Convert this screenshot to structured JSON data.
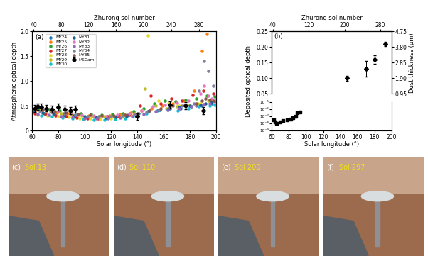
{
  "chart_data": [
    {
      "type": "scatter",
      "panel": "(a)",
      "xlabel": "Solar longitude (°)",
      "ylabel": "Atmospheric optical depth",
      "xlim": [
        60,
        200
      ],
      "xticks": [
        60,
        80,
        100,
        120,
        140,
        160,
        180,
        200
      ],
      "ylim": [
        0,
        2
      ],
      "yticks": [
        0,
        {
          "value": 0.5,
          "label": "0.5"
        },
        {
          "value": 1,
          "label": "1.0"
        },
        {
          "value": 1.5,
          "label": "1.5"
        },
        {
          "value": 2,
          "label": "2.0"
        }
      ],
      "legend": "upper left",
      "top_axis": {
        "label": "Zhurong sol number",
        "xlim": [
          38,
          305
        ],
        "xticks": [
          40,
          80,
          120,
          160,
          200,
          240,
          280
        ]
      },
      "series": [
        {
          "name": "MY24",
          "color": "#1f77b4",
          "marker": "o",
          "x": [
            61,
            69,
            77,
            85,
            93,
            101,
            109,
            117,
            125,
            133,
            141,
            149,
            157,
            165,
            173,
            181,
            189,
            197
          ],
          "values": [
            0.38,
            0.35,
            0.33,
            0.3,
            0.28,
            0.27,
            0.26,
            0.28,
            0.3,
            0.32,
            0.35,
            0.4,
            0.42,
            0.45,
            0.44,
            0.48,
            0.5,
            0.55
          ]
        },
        {
          "name": "MY25",
          "color": "#ff7f0e",
          "marker": "o",
          "x": [
            63,
            71,
            79,
            87,
            95,
            103,
            111,
            119,
            127,
            135,
            143,
            151,
            159,
            167,
            175,
            183,
            189,
            193
          ],
          "values": [
            0.42,
            0.4,
            0.36,
            0.34,
            0.31,
            0.3,
            0.29,
            0.3,
            0.33,
            0.36,
            0.4,
            0.45,
            0.5,
            0.55,
            0.6,
            0.8,
            1.6,
            1.95
          ]
        },
        {
          "name": "MY26",
          "color": "#2ca02c",
          "marker": "o",
          "x": [
            65,
            73,
            81,
            89,
            97,
            105,
            113,
            121,
            129,
            137,
            145,
            153,
            161,
            169,
            177,
            185,
            193,
            199
          ],
          "values": [
            0.45,
            0.43,
            0.4,
            0.37,
            0.35,
            0.33,
            0.32,
            0.33,
            0.35,
            0.38,
            0.45,
            0.55,
            0.6,
            0.58,
            0.62,
            0.65,
            0.7,
            0.68
          ]
        },
        {
          "name": "MY27",
          "color": "#d62728",
          "marker": "o",
          "x": [
            62,
            70,
            78,
            86,
            94,
            102,
            110,
            118,
            126,
            134,
            142,
            150,
            158,
            166,
            174,
            182,
            190,
            198
          ],
          "values": [
            0.35,
            0.33,
            0.3,
            0.28,
            0.26,
            0.25,
            0.24,
            0.26,
            0.28,
            0.32,
            0.5,
            0.7,
            0.55,
            0.65,
            0.6,
            0.72,
            0.8,
            0.75
          ]
        },
        {
          "name": "MY28",
          "color": "#e6d82a",
          "marker": "o",
          "x": [
            64,
            72,
            80,
            88,
            96,
            104,
            112,
            120,
            128,
            136,
            144,
            148,
            156,
            164,
            172,
            180,
            188,
            196
          ],
          "values": [
            0.32,
            0.3,
            0.28,
            0.27,
            0.25,
            0.24,
            0.23,
            0.25,
            0.27,
            0.3,
            0.4,
            1.92,
            0.6,
            0.55,
            0.5,
            0.52,
            0.55,
            0.58
          ]
        },
        {
          "name": "MY29",
          "color": "#bcbd22",
          "marker": "o",
          "x": [
            66,
            74,
            82,
            90,
            98,
            106,
            114,
            122,
            130,
            138,
            146,
            154,
            162,
            170,
            178,
            186,
            194,
            200
          ],
          "values": [
            0.4,
            0.38,
            0.35,
            0.33,
            0.3,
            0.29,
            0.28,
            0.29,
            0.31,
            0.34,
            0.85,
            0.5,
            0.45,
            0.48,
            0.52,
            0.55,
            0.6,
            0.62
          ]
        },
        {
          "name": "MY30",
          "color": "#17becf",
          "marker": "o",
          "x": [
            67,
            75,
            83,
            91,
            99,
            107,
            115,
            123,
            131,
            139,
            147,
            155,
            163,
            171,
            179,
            187,
            195,
            199
          ],
          "values": [
            0.3,
            0.28,
            0.26,
            0.25,
            0.23,
            0.22,
            0.22,
            0.23,
            0.25,
            0.28,
            0.35,
            0.4,
            0.42,
            0.4,
            0.45,
            0.48,
            0.5,
            0.52
          ]
        },
        {
          "name": "MY31",
          "color": "#1f5f8b",
          "marker": "o",
          "x": [
            68,
            76,
            84,
            92,
            100,
            108,
            116,
            124,
            132,
            140,
            148,
            156,
            164,
            172,
            180,
            188,
            192,
            196
          ],
          "values": [
            0.36,
            0.34,
            0.32,
            0.3,
            0.28,
            0.27,
            0.26,
            0.27,
            0.29,
            0.31,
            0.38,
            0.42,
            0.45,
            0.47,
            0.5,
            0.52,
            0.55,
            0.57
          ]
        },
        {
          "name": "MY32",
          "color": "#e377c2",
          "marker": "o",
          "x": [
            62,
            71,
            80,
            89,
            98,
            107,
            116,
            125,
            134,
            143,
            152,
            161,
            170,
            179,
            188,
            191,
            194,
            197
          ],
          "values": [
            0.44,
            0.41,
            0.38,
            0.35,
            0.32,
            0.3,
            0.29,
            0.31,
            0.34,
            0.4,
            0.48,
            0.52,
            0.56,
            0.6,
            0.75,
            0.9,
            0.7,
            0.65
          ]
        },
        {
          "name": "MY33",
          "color": "#9467bd",
          "marker": "o",
          "x": [
            64,
            73,
            82,
            91,
            100,
            109,
            118,
            127,
            136,
            145,
            154,
            163,
            172,
            181,
            185,
            190,
            195,
            199
          ],
          "values": [
            0.33,
            0.31,
            0.29,
            0.27,
            0.25,
            0.24,
            0.24,
            0.26,
            0.29,
            0.33,
            0.38,
            0.42,
            0.45,
            0.48,
            0.5,
            0.53,
            0.55,
            0.58
          ]
        },
        {
          "name": "MY34",
          "color": "#7f7f9f",
          "marker": "o",
          "x": [
            66,
            75,
            84,
            93,
            102,
            111,
            120,
            129,
            138,
            147,
            156,
            165,
            174,
            183,
            187,
            191,
            194,
            198
          ],
          "values": [
            0.39,
            0.37,
            0.34,
            0.31,
            0.29,
            0.28,
            0.28,
            0.3,
            0.33,
            0.37,
            0.42,
            0.46,
            0.5,
            0.55,
            0.8,
            1.4,
            1.2,
            0.9
          ]
        },
        {
          "name": "MY35",
          "color": "#8c564b",
          "marker": "o",
          "x": [
            68,
            77,
            86,
            95,
            104,
            113,
            122,
            131,
            140,
            149,
            158,
            167,
            176,
            185,
            189,
            192,
            195,
            198
          ],
          "values": [
            0.41,
            0.38,
            0.36,
            0.33,
            0.31,
            0.3,
            0.3,
            0.32,
            0.35,
            0.4,
            0.45,
            0.5,
            0.52,
            0.55,
            0.6,
            0.65,
            0.62,
            0.6
          ]
        },
        {
          "name": "MSCam",
          "color": "#000000",
          "marker": "D",
          "x": [
            62,
            64,
            67,
            71,
            75,
            80,
            85,
            89,
            93,
            140,
            165,
            177,
            190
          ],
          "values": [
            0.44,
            0.48,
            0.47,
            0.45,
            0.43,
            0.47,
            0.43,
            0.4,
            0.43,
            0.28,
            0.52,
            0.5,
            0.4
          ],
          "error": [
            0.07,
            0.07,
            0.07,
            0.07,
            0.07,
            0.07,
            0.07,
            0.07,
            0.07,
            0.07,
            0.07,
            0.07,
            0.07
          ]
        }
      ]
    },
    {
      "type": "scatter",
      "panel": "(b)",
      "ylabel": "Deposited optical depth",
      "xlim": [
        60,
        200
      ],
      "tick_labels": "y",
      "ylim": [
        0.05,
        0.25
      ],
      "yticks": [
        0.05,
        {
          "value": 0.1,
          "label": "0.10"
        },
        0.15,
        {
          "value": 0.2,
          "label": "0.20"
        },
        0.25
      ],
      "y2label": "Dust thickness (μm)",
      "y2lim": [
        0.95,
        4.75
      ],
      "y2ticks": [
        0.95,
        {
          "value": 1.9,
          "label": "1.90"
        },
        2.85,
        {
          "value": 3.8,
          "label": "3.80"
        },
        4.75
      ],
      "top_axis": {
        "label": "Zhurong sol number",
        "xlim": [
          38,
          305
        ],
        "xticks": [
          40,
          120,
          200,
          280
        ]
      },
      "series": [
        {
          "color": "#000000",
          "marker": "D",
          "x": [
            148,
            170,
            180,
            193
          ],
          "values": [
            0.1,
            0.13,
            0.16,
            0.21
          ],
          "error": [
            0.008,
            0.025,
            0.014,
            0.007
          ]
        }
      ]
    },
    {
      "type": "scatter",
      "log": "y",
      "xlabel": "Solar longitude (°)",
      "xlim": [
        60,
        200
      ],
      "xticks": [
        60,
        80,
        100,
        120,
        140,
        160,
        180,
        200
      ],
      "ylim": [
        1e-09,
        1e-05
      ],
      "yticks": [
        {
          "value": 1e-09,
          "label": "10⁻⁹"
        },
        {
          "value": 1e-08,
          "label": "10⁻⁸"
        },
        {
          "value": 1e-07,
          "label": "10⁻⁷"
        },
        {
          "value": 1e-06,
          "label": "10⁻⁶"
        },
        {
          "value": 1e-05,
          "label": "10⁻⁵"
        }
      ],
      "series": [
        {
          "color": "#000000",
          "marker": "s",
          "x": [
            62,
            64,
            66,
            70,
            73,
            78,
            82,
            85,
            88,
            90,
            93
          ],
          "values": [
            3e-08,
            1.5e-08,
            1e-08,
            1.5e-08,
            2.5e-08,
            3e-08,
            4e-08,
            6e-08,
            1e-07,
            3e-07,
            4e-07
          ]
        }
      ]
    }
  ],
  "photos": [
    {
      "panel": "(c)",
      "caption": "Sol 13"
    },
    {
      "panel": "(d)",
      "caption": "Sol 110"
    },
    {
      "panel": "(e)",
      "caption": "Sol 200"
    },
    {
      "panel": "(f)",
      "caption": "Sol 297"
    }
  ]
}
